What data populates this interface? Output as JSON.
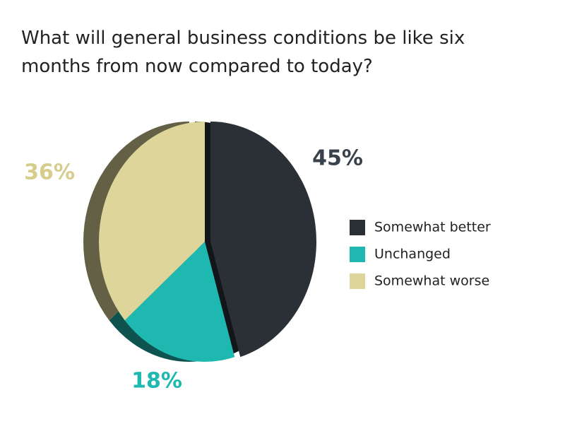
{
  "chart_data": {
    "type": "pie",
    "title": "What will general business conditions be like six months from now compared to today?",
    "categories": [
      "Somewhat better",
      "Unchanged",
      "Somewhat worse"
    ],
    "values": [
      45,
      18,
      36
    ],
    "value_labels": [
      "45%",
      "18%",
      "36%"
    ],
    "colors": [
      "#2b3036",
      "#1fb8b0",
      "#ddd59a"
    ],
    "legend": "right"
  }
}
